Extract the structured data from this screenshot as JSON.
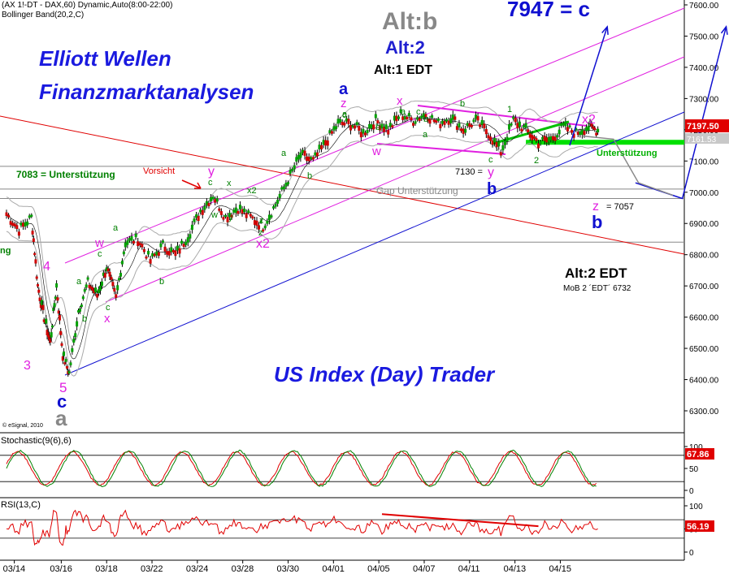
{
  "header": {
    "line1": "(AX 1!-DT - DAX,60) Dynamic,Auto(8:00-22:00)",
    "line2": "Bollinger Band(20,2,C)"
  },
  "brand": {
    "line1": "Elliott Wellen",
    "line2": "Finanzmarktanalysen",
    "footer": "US Index (Day) Trader",
    "copyright": "© eSignal, 2010"
  },
  "chart_data": [
    {
      "type": "line",
      "panel": "price",
      "ylim": [
        6200,
        7650
      ],
      "yticks": [
        6300,
        6400,
        6500,
        6600,
        6700,
        6800,
        6900,
        7000,
        7100,
        7200,
        7300,
        7400,
        7500,
        7600
      ],
      "ytick_labels": [
        "6300.00",
        "6400.00",
        "6500.00",
        "6600.00",
        "6700.00",
        "6800.00",
        "6900.00",
        "7000.00",
        "7100.00",
        "7200.00",
        "7300.00",
        "7400.00",
        "7500.00",
        "7600.00"
      ],
      "x_labels": [
        "03/14",
        "03/16",
        "03/18",
        "03/22",
        "03/24",
        "03/28",
        "03/30",
        "04/01",
        "04/05",
        "04/07",
        "04/11",
        "04/13",
        "04/15"
      ],
      "last_value_label": "7197.50",
      "second_value_label": "7161.53",
      "price_path": [
        {
          "d": 0,
          "p": 6930
        },
        {
          "d": 0.4,
          "p": 6880
        },
        {
          "d": 0.8,
          "p": 6920
        },
        {
          "d": 1.0,
          "p": 6700
        },
        {
          "d": 1.2,
          "p": 6600
        },
        {
          "d": 1.4,
          "p": 6520
        },
        {
          "d": 1.6,
          "p": 6700
        },
        {
          "d": 1.8,
          "p": 6480
        },
        {
          "d": 2.0,
          "p": 6420
        },
        {
          "d": 2.3,
          "p": 6620
        },
        {
          "d": 2.6,
          "p": 6710
        },
        {
          "d": 2.9,
          "p": 6670
        },
        {
          "d": 3.2,
          "p": 6760
        },
        {
          "d": 3.5,
          "p": 6660
        },
        {
          "d": 3.8,
          "p": 6840
        },
        {
          "d": 4.2,
          "p": 6850
        },
        {
          "d": 4.6,
          "p": 6780
        },
        {
          "d": 5.0,
          "p": 6830
        },
        {
          "d": 5.4,
          "p": 6800
        },
        {
          "d": 5.8,
          "p": 6860
        },
        {
          "d": 6.2,
          "p": 6940
        },
        {
          "d": 6.6,
          "p": 6990
        },
        {
          "d": 7.0,
          "p": 6920
        },
        {
          "d": 7.4,
          "p": 6950
        },
        {
          "d": 7.8,
          "p": 6920
        },
        {
          "d": 8.2,
          "p": 6890
        },
        {
          "d": 8.6,
          "p": 6960
        },
        {
          "d": 9.0,
          "p": 7040
        },
        {
          "d": 9.4,
          "p": 7120
        },
        {
          "d": 9.8,
          "p": 7100
        },
        {
          "d": 10.2,
          "p": 7160
        },
        {
          "d": 10.6,
          "p": 7220
        },
        {
          "d": 11.0,
          "p": 7220
        },
        {
          "d": 11.4,
          "p": 7190
        },
        {
          "d": 11.8,
          "p": 7230
        },
        {
          "d": 12.2,
          "p": 7200
        },
        {
          "d": 12.6,
          "p": 7250
        },
        {
          "d": 13.0,
          "p": 7230
        },
        {
          "d": 13.4,
          "p": 7250
        },
        {
          "d": 13.8,
          "p": 7220
        },
        {
          "d": 14.2,
          "p": 7240
        },
        {
          "d": 14.6,
          "p": 7200
        },
        {
          "d": 15.0,
          "p": 7230
        },
        {
          "d": 15.4,
          "p": 7190
        },
        {
          "d": 15.8,
          "p": 7130
        },
        {
          "d": 16.2,
          "p": 7230
        },
        {
          "d": 16.6,
          "p": 7200
        },
        {
          "d": 17.0,
          "p": 7160
        },
        {
          "d": 17.4,
          "p": 7170
        },
        {
          "d": 17.8,
          "p": 7210
        },
        {
          "d": 18.2,
          "p": 7190
        },
        {
          "d": 18.6,
          "p": 7210
        },
        {
          "d": 18.9,
          "p": 7197.5
        }
      ],
      "forecast_paths": [
        {
          "name": "blue-forecast-1",
          "points": [
            {
              "d": 18.0,
              "p": 7150
            },
            {
              "d": 19.2,
              "p": 7530
            }
          ]
        },
        {
          "name": "blue-forecast-2",
          "points": [
            {
              "d": 20.1,
              "p": 7030
            },
            {
              "d": 21.6,
              "p": 6980
            },
            {
              "d": 23.0,
              "p": 7530
            }
          ]
        },
        {
          "name": "gray-forecast",
          "points": [
            {
              "d": 18.4,
              "p": 7180
            },
            {
              "d": 19.4,
              "p": 7170
            },
            {
              "d": 20.2,
              "p": 7030
            },
            {
              "d": 21.3,
              "p": 6990
            }
          ]
        }
      ],
      "levels": [
        {
          "name": "unterstuetzung-level",
          "value": 7160,
          "color": "#00e000",
          "label": "Unterstützung"
        },
        {
          "name": "gap-level",
          "value": 7010,
          "color": "#888888",
          "label": "Gap Unterstützung"
        },
        {
          "name": "grey-line-6980",
          "value": 6980,
          "color": "#888888"
        },
        {
          "name": "grey-line-6840",
          "value": 6840,
          "color": "#888888"
        }
      ],
      "annotations": [
        {
          "text": "Alt:b",
          "color": "#888888"
        },
        {
          "text": "Alt:2",
          "color": "#2020d0"
        },
        {
          "text": "Alt:1 EDT",
          "color": "#000000"
        },
        {
          "text": "7947 = c",
          "color": "#1010d0"
        },
        {
          "text": "x2",
          "color": "#e020e0"
        },
        {
          "text": "Unterstützung",
          "color": "#00b000"
        },
        {
          "text": "Gap Unterstützung",
          "color": "#888888"
        },
        {
          "text": "7083 = Unterstützung",
          "color": "#008000"
        },
        {
          "text": "Vorsicht",
          "color": "#e00000"
        },
        {
          "text": "7130 =",
          "color": "#000000"
        },
        {
          "text": "y",
          "color": "#e020e0"
        },
        {
          "text": "b",
          "color": "#1010d0"
        },
        {
          "text": "z",
          "color": "#e020e0"
        },
        {
          "text": "= 7057",
          "color": "#000000"
        },
        {
          "text": "b",
          "color": "#1010d0"
        },
        {
          "text": "Alt:2 EDT",
          "color": "#000000"
        },
        {
          "text": "MoB 2 ´EDT´ 6732",
          "color": "#000000"
        },
        {
          "text": "a",
          "color": "#1010d0"
        },
        {
          "text": "z",
          "color": "#e020e0"
        },
        {
          "text": "x",
          "color": "#e020e0"
        },
        {
          "text": "w",
          "color": "#e020e0"
        },
        {
          "text": "y",
          "color": "#e020e0"
        },
        {
          "text": "w",
          "color": "#e020e0"
        },
        {
          "text": "x",
          "color": "#e020e0"
        },
        {
          "text": "x2",
          "color": "#e020e0"
        },
        {
          "text": "4",
          "color": "#e020e0"
        },
        {
          "text": "3",
          "color": "#e020e0"
        },
        {
          "text": "5",
          "color": "#e020e0"
        },
        {
          "text": "c",
          "color": "#1010d0"
        },
        {
          "text": "a",
          "color": "#888888"
        },
        {
          "text": "ng",
          "color": "#008000"
        },
        {
          "text": "a",
          "color": "#008000"
        },
        {
          "text": "c",
          "color": "#008000"
        },
        {
          "text": "b",
          "color": "#008000"
        },
        {
          "text": "z",
          "color": "#008000"
        },
        {
          "text": "1",
          "color": "#008000"
        },
        {
          "text": "2",
          "color": "#008000"
        },
        {
          "text": "a",
          "color": "#008000"
        },
        {
          "text": "b",
          "color": "#008000"
        },
        {
          "text": "c",
          "color": "#008000"
        },
        {
          "text": "a",
          "color": "#008000"
        },
        {
          "text": "b",
          "color": "#008000"
        },
        {
          "text": "c",
          "color": "#008000"
        },
        {
          "text": "b",
          "color": "#008000"
        },
        {
          "text": "a",
          "color": "#008000"
        },
        {
          "text": "c",
          "color": "#008000"
        },
        {
          "text": "x",
          "color": "#008000"
        },
        {
          "text": "w",
          "color": "#008000"
        },
        {
          "text": "y",
          "color": "#008000"
        },
        {
          "text": "x2",
          "color": "#008000"
        },
        {
          "text": "z",
          "color": "#008000"
        },
        {
          "text": "b",
          "color": "#008000"
        },
        {
          "text": "a",
          "color": "#008000"
        },
        {
          "text": "c",
          "color": "#008000"
        },
        {
          "text": "a",
          "color": "#008000"
        },
        {
          "text": "b",
          "color": "#008000"
        },
        {
          "text": "c",
          "color": "#008000"
        }
      ]
    },
    {
      "type": "line",
      "panel": "stochastic",
      "title": "Stochastic(9(6),6)",
      "ylim": [
        0,
        100
      ],
      "yticks": [
        0,
        50,
        100
      ],
      "ytick_labels": [
        "0",
        "50",
        "100"
      ],
      "levels": [
        20,
        80
      ],
      "last_value_label": "67.86",
      "series": [
        {
          "color": "#e00000",
          "cycle_days": 1.75,
          "phase": 0.3,
          "amplitude": 38,
          "offset": 50,
          "last": 67.86
        },
        {
          "color": "#008000",
          "cycle_days": 1.75,
          "phase": 0.0,
          "amplitude": 40,
          "offset": 50
        }
      ]
    },
    {
      "type": "line",
      "panel": "rsi",
      "title": "RSI(13,C)",
      "ylim": [
        0,
        100
      ],
      "yticks": [
        0,
        50,
        100
      ],
      "ytick_labels": [
        "0",
        "50",
        "100"
      ],
      "levels": [
        30,
        70
      ],
      "last_value_label": "56.19",
      "series": [
        {
          "color": "#e00000",
          "base": 55,
          "last": 56.19
        }
      ],
      "trendline": {
        "color": "#e00000",
        "from": {
          "d": 12.0,
          "v": 82
        },
        "to": {
          "d": 17.0,
          "v": 56
        }
      }
    }
  ]
}
